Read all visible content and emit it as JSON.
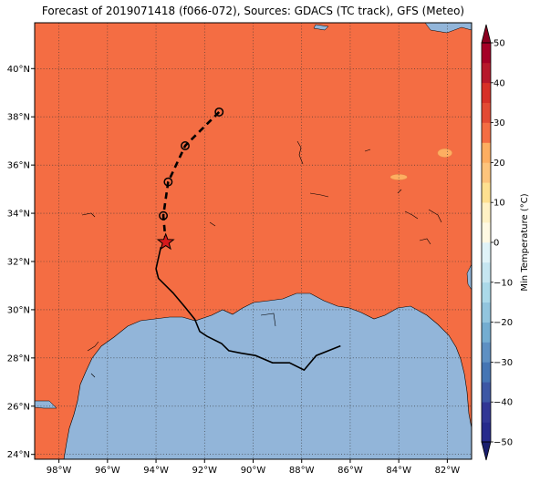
{
  "title": "Forecast of 2019071418 (f066-072), Sources: GDACS (TC track), GFS (Meteo)",
  "map": {
    "lon_range": [
      -99.0,
      -81.0
    ],
    "lat_range": [
      23.8,
      41.9
    ],
    "x_ticks": [
      {
        "value": -98,
        "label": "98°W"
      },
      {
        "value": -96,
        "label": "96°W"
      },
      {
        "value": -94,
        "label": "94°W"
      },
      {
        "value": -92,
        "label": "92°W"
      },
      {
        "value": -90,
        "label": "90°W"
      },
      {
        "value": -88,
        "label": "88°W"
      },
      {
        "value": -86,
        "label": "86°W"
      },
      {
        "value": -84,
        "label": "84°W"
      },
      {
        "value": -82,
        "label": "82°W"
      }
    ],
    "y_ticks": [
      {
        "value": 24,
        "label": "24°N"
      },
      {
        "value": 26,
        "label": "26°N"
      },
      {
        "value": 28,
        "label": "28°N"
      },
      {
        "value": 30,
        "label": "30°N"
      },
      {
        "value": 32,
        "label": "32°N"
      },
      {
        "value": 34,
        "label": "34°N"
      },
      {
        "value": 36,
        "label": "36°N"
      },
      {
        "value": 38,
        "label": "38°N"
      },
      {
        "value": 40,
        "label": "40°N"
      }
    ],
    "grid": "dotted",
    "land_color": "#f46d43",
    "ocean_color": "#92b5d9"
  },
  "track": {
    "observed": [
      [
        -86.4,
        28.5
      ],
      [
        -87.4,
        28.1
      ],
      [
        -87.9,
        27.5
      ],
      [
        -88.5,
        27.8
      ],
      [
        -89.2,
        27.8
      ],
      [
        -89.9,
        28.1
      ],
      [
        -90.5,
        28.2
      ],
      [
        -91.0,
        28.3
      ],
      [
        -91.3,
        28.6
      ],
      [
        -91.9,
        28.9
      ],
      [
        -92.2,
        29.1
      ],
      [
        -92.4,
        29.6
      ],
      [
        -92.8,
        30.1
      ],
      [
        -93.3,
        30.7
      ],
      [
        -93.9,
        31.3
      ],
      [
        -94.0,
        31.7
      ],
      [
        -93.8,
        32.6
      ]
    ],
    "current_position": [
      -93.6,
      32.8
    ],
    "forecast": [
      {
        "lon": -93.7,
        "lat": 33.9
      },
      {
        "lon": -93.5,
        "lat": 35.3
      },
      {
        "lon": -92.8,
        "lat": 36.8
      },
      {
        "lon": -91.4,
        "lat": 38.2
      }
    ]
  },
  "warm_patches": [
    {
      "lon": -84.0,
      "lat": 35.5,
      "rx": 0.35,
      "ry": 0.12
    },
    {
      "lon": -82.1,
      "lat": 36.5,
      "rx": 0.3,
      "ry": 0.18
    }
  ],
  "colorbar": {
    "label": "Min Temperature (°C)",
    "min": -50,
    "max": 50,
    "ticks": [
      50,
      40,
      30,
      20,
      10,
      0,
      -10,
      -20,
      -30,
      -40,
      -50
    ],
    "levels": [
      {
        "from": -50,
        "to": -45,
        "color": "#262a8c"
      },
      {
        "from": -45,
        "to": -40,
        "color": "#313695"
      },
      {
        "from": -40,
        "to": -35,
        "color": "#3d57a5"
      },
      {
        "from": -35,
        "to": -30,
        "color": "#4575b4"
      },
      {
        "from": -30,
        "to": -25,
        "color": "#5e90c3"
      },
      {
        "from": -25,
        "to": -20,
        "color": "#74add1"
      },
      {
        "from": -20,
        "to": -15,
        "color": "#92c5de"
      },
      {
        "from": -15,
        "to": -10,
        "color": "#abd9e9"
      },
      {
        "from": -10,
        "to": -5,
        "color": "#c6e6f1"
      },
      {
        "from": -5,
        "to": 0,
        "color": "#e0f3f8"
      },
      {
        "from": 0,
        "to": 5,
        "color": "#fff9e3"
      },
      {
        "from": 5,
        "to": 10,
        "color": "#fff1c4"
      },
      {
        "from": 10,
        "to": 15,
        "color": "#fee090"
      },
      {
        "from": 15,
        "to": 20,
        "color": "#fdc47c"
      },
      {
        "from": 20,
        "to": 25,
        "color": "#fdae61"
      },
      {
        "from": 25,
        "to": 30,
        "color": "#f46d43"
      },
      {
        "from": 30,
        "to": 35,
        "color": "#e34a33"
      },
      {
        "from": 35,
        "to": 40,
        "color": "#d73027"
      },
      {
        "from": 40,
        "to": 45,
        "color": "#b7182b"
      },
      {
        "from": 45,
        "to": 50,
        "color": "#a50026"
      }
    ],
    "under_color": "#1a1f6e",
    "over_color": "#8b0020"
  }
}
